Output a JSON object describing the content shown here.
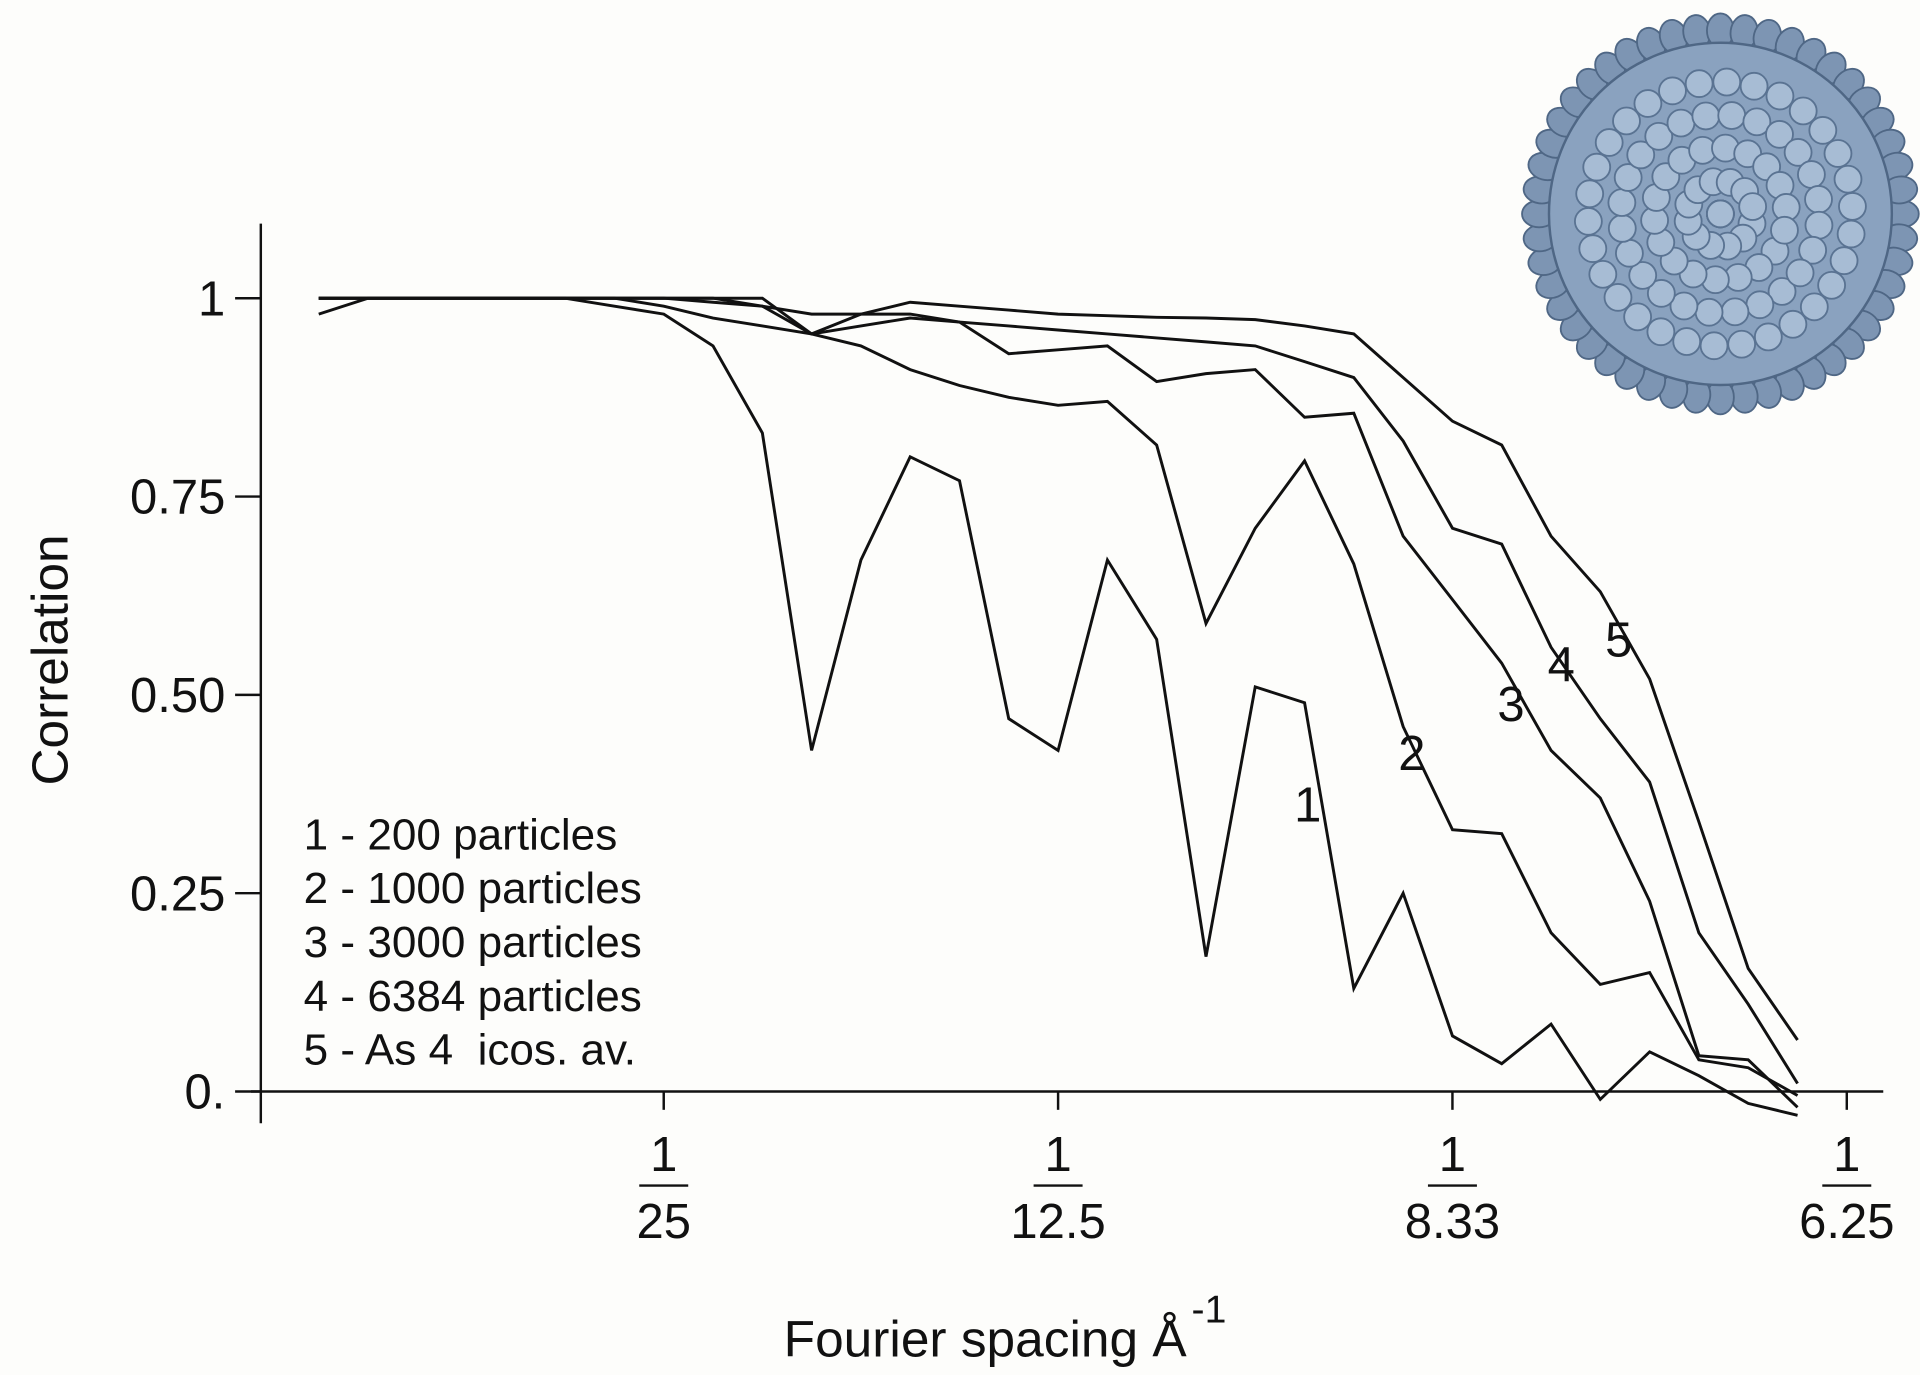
{
  "chart_data": {
    "type": "line",
    "xlabel": "Fourier spacing Å",
    "xlabel_superscript": "-1",
    "ylabel": "Correlation",
    "x": [
      0.005,
      0.01,
      0.015,
      0.02,
      0.025,
      0.03,
      0.035,
      0.04,
      0.045,
      0.05,
      0.055,
      0.06,
      0.065,
      0.07,
      0.075,
      0.08,
      0.085,
      0.09,
      0.095,
      0.1,
      0.105,
      0.11,
      0.115,
      0.12,
      0.125,
      0.13,
      0.135,
      0.14,
      0.145,
      0.15,
      0.155
    ],
    "xlim": [
      0,
      0.1637
    ],
    "ylim": [
      -0.04,
      1.094
    ],
    "xticks": [
      {
        "value": 0.04,
        "label": {
          "numerator": "1",
          "denominator": "25"
        }
      },
      {
        "value": 0.08,
        "label": {
          "numerator": "1",
          "denominator": "12.5"
        }
      },
      {
        "value": 0.12,
        "label": {
          "numerator": "1",
          "denominator": "8.33"
        }
      },
      {
        "value": 0.16,
        "label": {
          "numerator": "1",
          "denominator": "6.25"
        }
      }
    ],
    "yticks": [
      {
        "value": 0,
        "label": "0."
      },
      0.25,
      {
        "value": 0.5,
        "label": "0.50"
      },
      0.75,
      1
    ],
    "legend": "lower left",
    "series": [
      {
        "name": "1 - 200 particles",
        "label": "1",
        "color": "#111111",
        "values": [
          0.98,
          1,
          1,
          1,
          1,
          1,
          0.99,
          0.98,
          0.94,
          0.83,
          0.43,
          0.67,
          0.8,
          0.77,
          0.47,
          0.43,
          0.67,
          0.57,
          0.17,
          0.51,
          0.49,
          0.13,
          0.25,
          0.07,
          0.035,
          0.085,
          -0.01,
          0.05,
          0.02,
          -0.015,
          -0.03
        ]
      },
      {
        "name": "2 - 1000 particles",
        "label": "2",
        "color": "#111111",
        "values": [
          1,
          1,
          1,
          1,
          1,
          1,
          1,
          0.99,
          0.975,
          0.965,
          0.955,
          0.94,
          0.91,
          0.89,
          0.875,
          0.865,
          0.87,
          0.815,
          0.59,
          0.71,
          0.795,
          0.665,
          0.46,
          0.33,
          0.325,
          0.2,
          0.135,
          0.15,
          0.04,
          0.03,
          -0.005
        ]
      },
      {
        "name": "3 - 3000 particles",
        "label": "3",
        "color": "#111111",
        "values": [
          1,
          1,
          1,
          1,
          1,
          1,
          1,
          1,
          0.995,
          0.99,
          0.955,
          0.965,
          0.975,
          0.97,
          0.93,
          0.935,
          0.94,
          0.895,
          0.905,
          0.91,
          0.85,
          0.855,
          0.7,
          0.62,
          0.54,
          0.43,
          0.37,
          0.24,
          0.045,
          0.04,
          -0.02
        ]
      },
      {
        "name": "4 - 6384 particles",
        "label": "4",
        "color": "#111111",
        "values": [
          1,
          1,
          1,
          1,
          1,
          1,
          1,
          1,
          1,
          0.99,
          0.98,
          0.98,
          0.98,
          0.97,
          0.965,
          0.96,
          0.955,
          0.95,
          0.945,
          0.94,
          0.92,
          0.9,
          0.82,
          0.71,
          0.69,
          0.56,
          0.47,
          0.39,
          0.2,
          0.11,
          0.01
        ]
      },
      {
        "name": "5 - As 4  icos. av.",
        "label": "5",
        "color": "#111111",
        "values": [
          1,
          1,
          1,
          1,
          1,
          1,
          1,
          1,
          1,
          1,
          0.955,
          0.98,
          0.995,
          0.99,
          0.985,
          0.98,
          0.978,
          0.976,
          0.975,
          0.973,
          0.965,
          0.955,
          0.9,
          0.845,
          0.815,
          0.7,
          0.63,
          0.52,
          0.34,
          0.155,
          0.065
        ]
      }
    ]
  }
}
